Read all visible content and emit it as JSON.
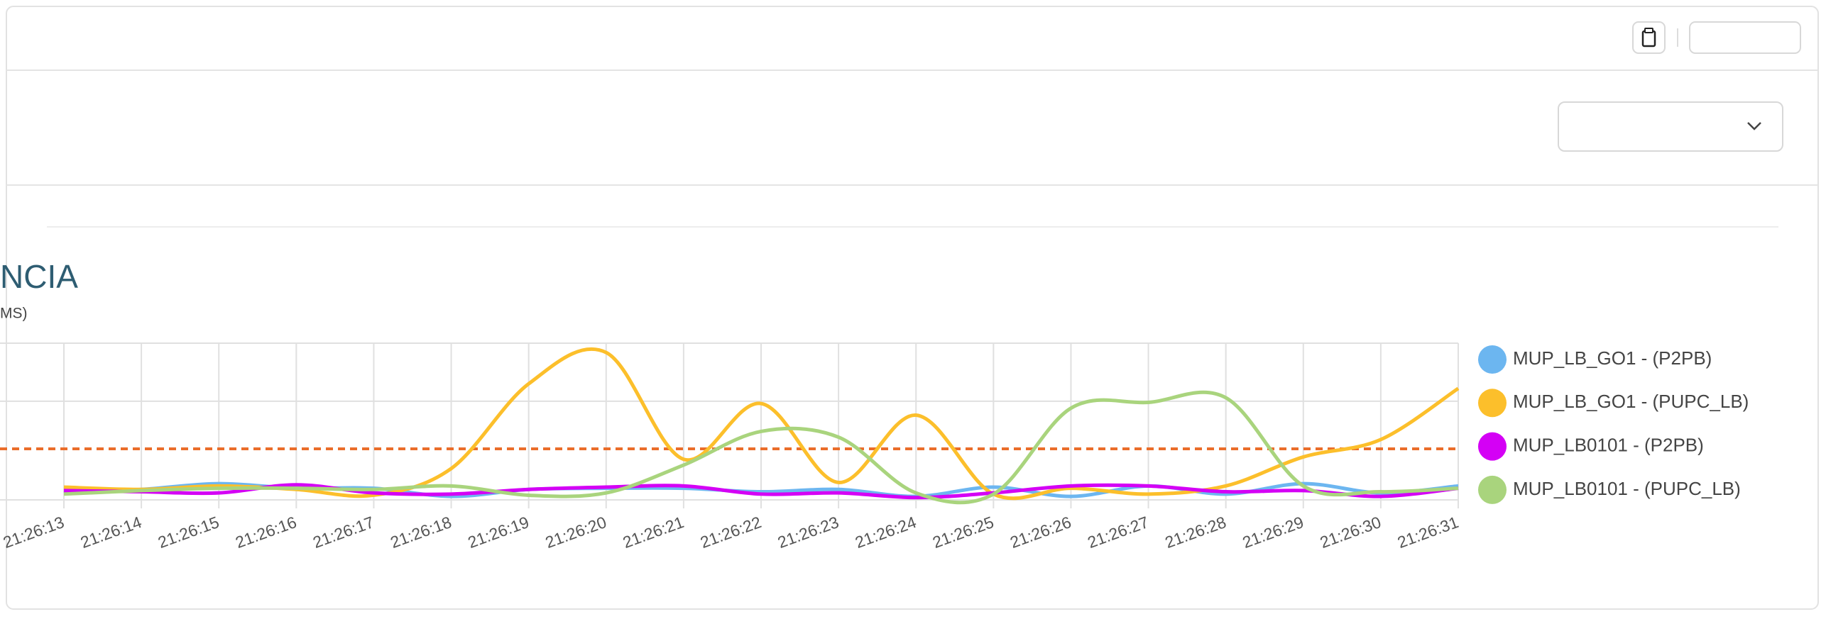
{
  "chart_data": {
    "type": "line",
    "title": "NCIA",
    "subtitle": "MS)",
    "categories": [
      "21:26:13",
      "21:26:14",
      "21:26:15",
      "21:26:16",
      "21:26:17",
      "21:26:18",
      "21:26:19",
      "21:26:20",
      "21:26:21",
      "21:26:22",
      "21:26:23",
      "21:26:24",
      "21:26:25",
      "21:26:26",
      "21:26:27",
      "21:26:28",
      "21:26:29",
      "21:26:30",
      "21:26:31"
    ],
    "series": [
      {
        "name": "MUP_LB_GO1 - (P2PB)",
        "color": "#6cb6f0",
        "values": [
          0.12,
          0.18,
          0.28,
          0.2,
          0.2,
          0.06,
          0.18,
          0.2,
          0.2,
          0.14,
          0.18,
          0.06,
          0.22,
          0.06,
          0.24,
          0.1,
          0.28,
          0.12,
          0.24
        ]
      },
      {
        "name": "MUP_LB_GO1 - (PUPC_LB)",
        "color": "#fcbf2b",
        "values": [
          0.22,
          0.18,
          0.24,
          0.18,
          0.08,
          0.54,
          2.0,
          2.54,
          0.7,
          1.66,
          0.3,
          1.46,
          0.1,
          0.2,
          0.1,
          0.24,
          0.74,
          1.04,
          1.92
        ]
      },
      {
        "name": "MUP_LB0101 - (P2PB)",
        "color": "#d400f5",
        "values": [
          0.16,
          0.14,
          0.12,
          0.26,
          0.12,
          0.1,
          0.18,
          0.22,
          0.24,
          0.1,
          0.12,
          0.04,
          0.12,
          0.24,
          0.24,
          0.14,
          0.16,
          0.06,
          0.2
        ]
      },
      {
        "name": "MUP_LB0101 - (PUPC_LB)",
        "color": "#a9d47d",
        "values": [
          0.1,
          0.16,
          0.2,
          0.2,
          0.18,
          0.24,
          0.08,
          0.12,
          0.6,
          1.18,
          1.08,
          0.12,
          0.1,
          1.58,
          1.68,
          1.76,
          0.24,
          0.14,
          0.2
        ]
      }
    ],
    "ylim": [
      0,
      2.7
    ],
    "ygrid": [
      0,
      1.7,
      2.7
    ],
    "grid": true,
    "threshold": 0.88,
    "threshold_color": "#ea6d2a",
    "legend": "right"
  }
}
